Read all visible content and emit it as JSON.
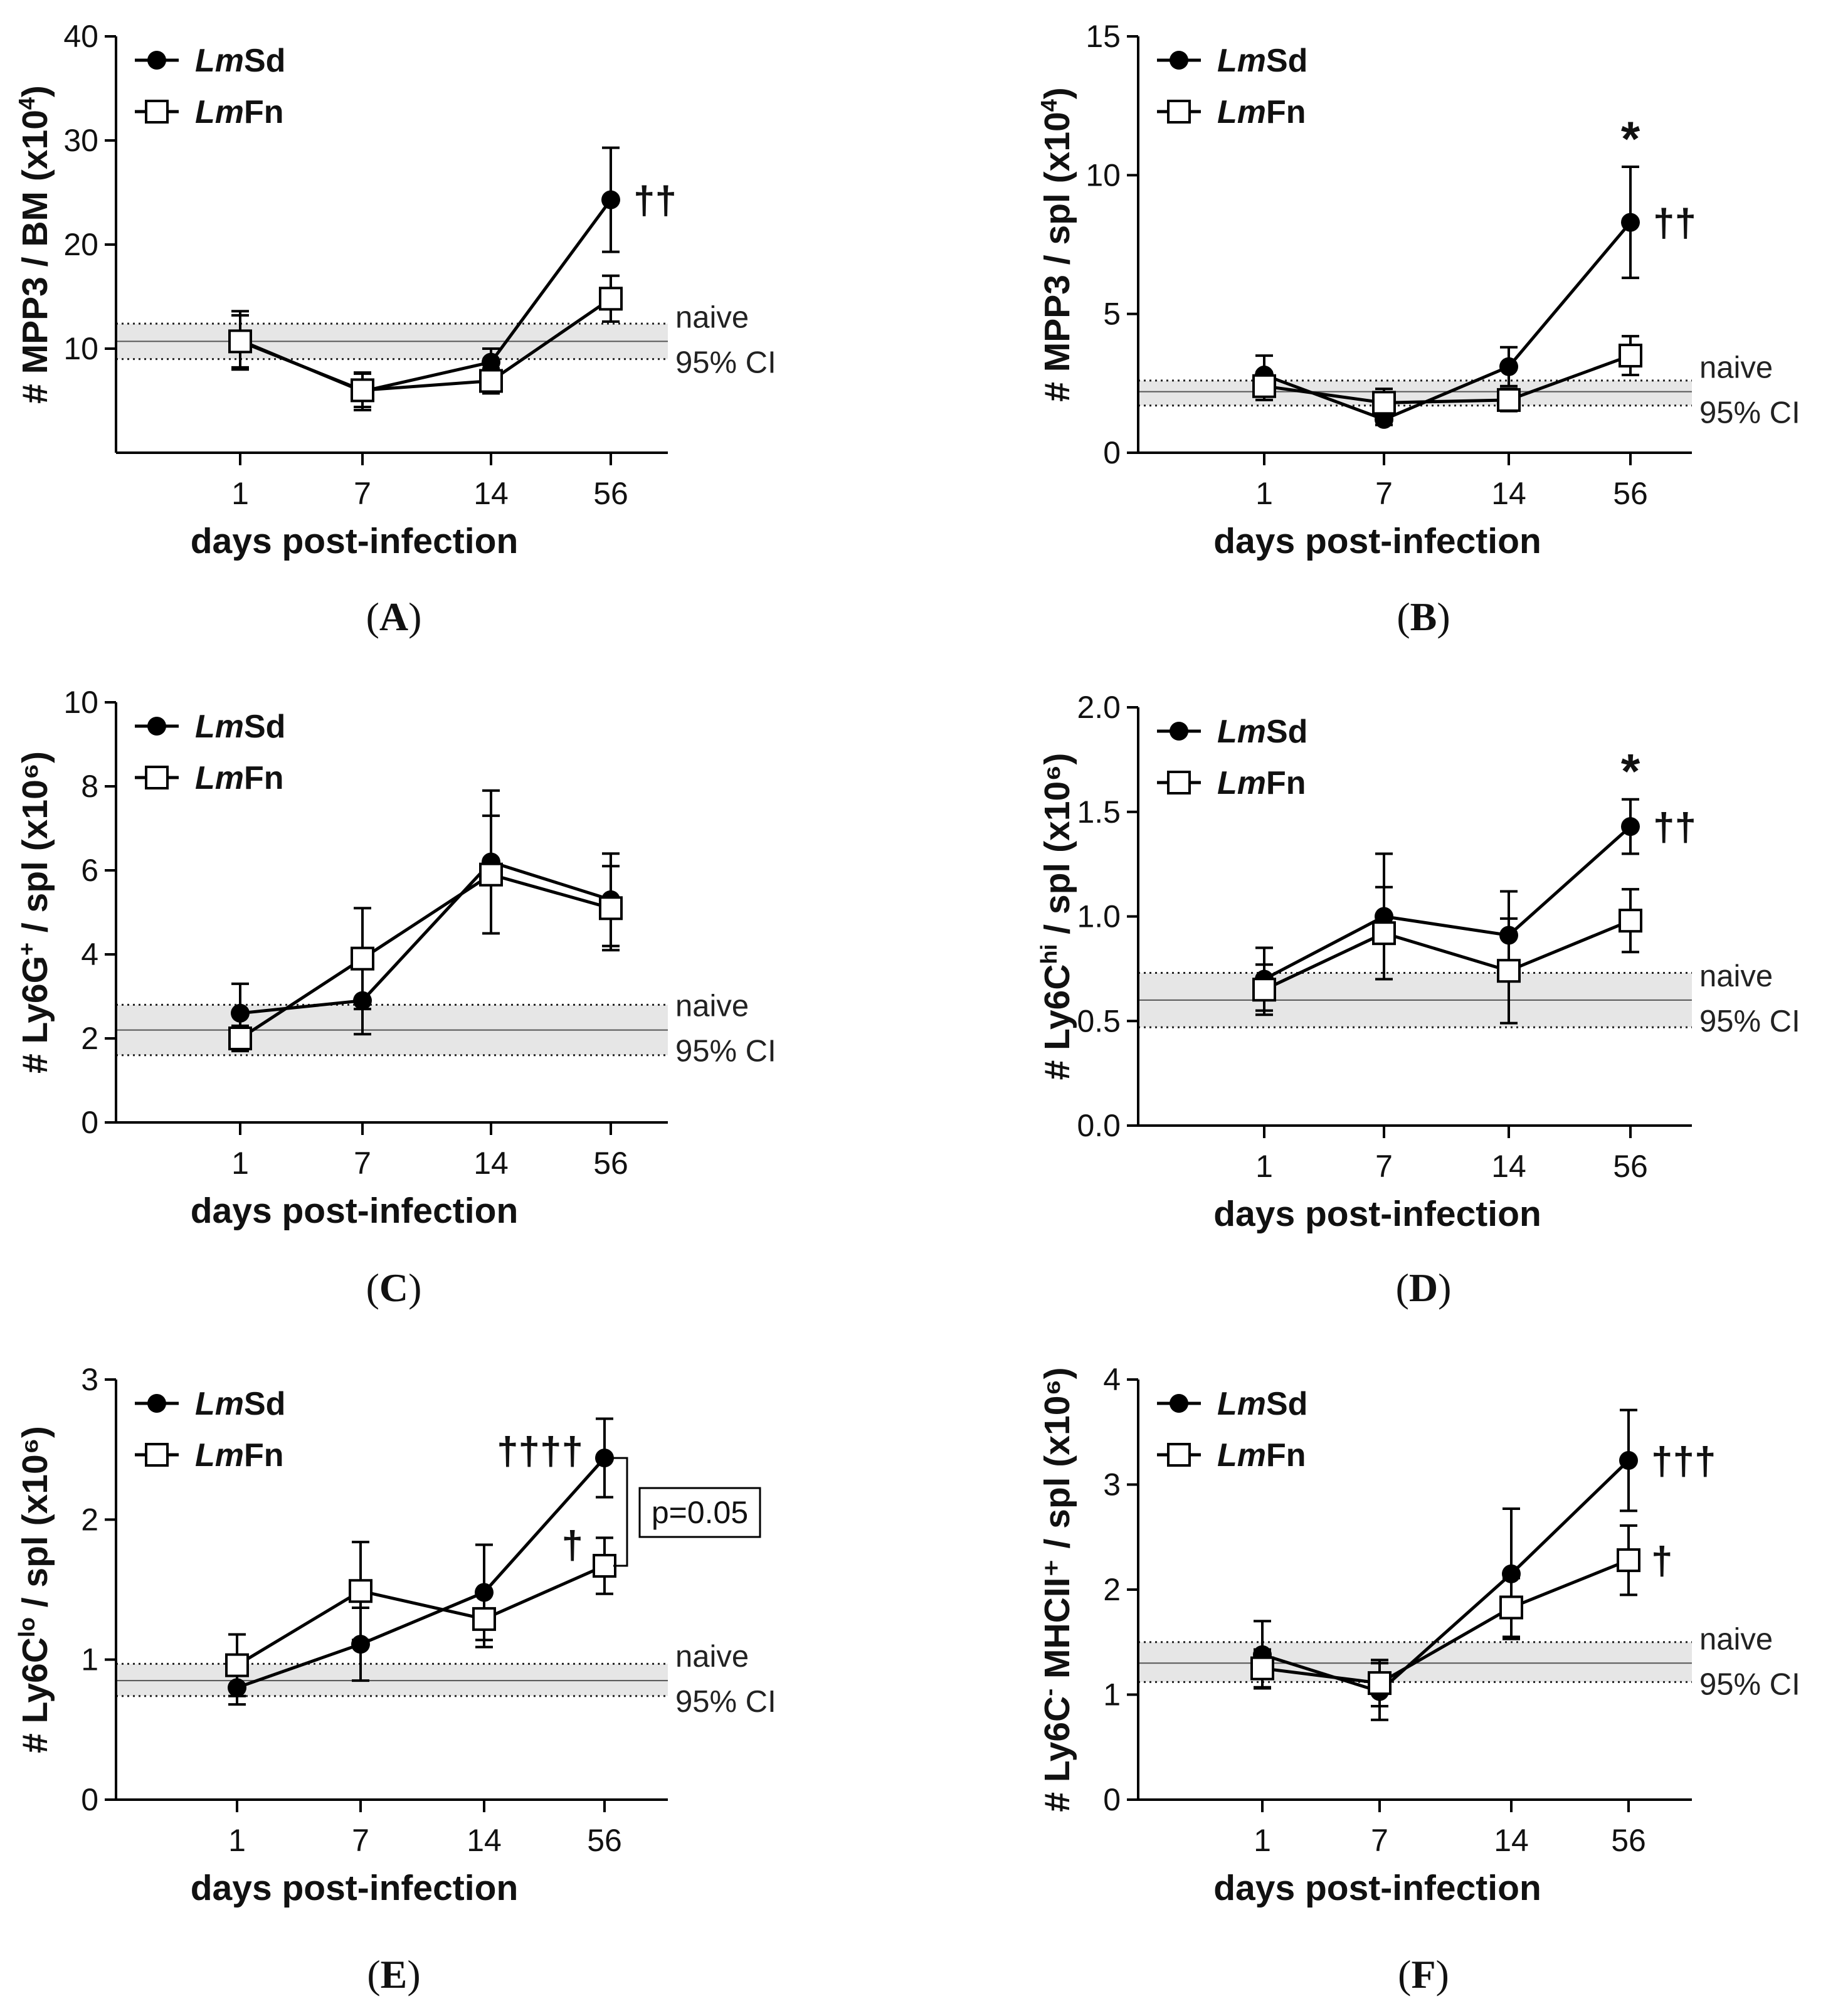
{
  "figure": {
    "x_axis_title": "days post-infection",
    "legend": [
      {
        "prefix": "Lm",
        "suffix": "Sd",
        "marker": "filled-circle",
        "color": "#000000"
      },
      {
        "prefix": "Lm",
        "suffix": "Fn",
        "marker": "open-square",
        "color": "#000000"
      }
    ],
    "naive_label": "naive",
    "ci_label": "95% CI",
    "colors": {
      "line": "#000000",
      "band": "#e6e6e6",
      "ci_line": "#555555"
    }
  },
  "chart_data": [
    {
      "id": "A",
      "panel_label": "A",
      "type": "line",
      "ylabel_main": "# MPP3 / BM (x10",
      "ylabel_sup": "4",
      "ylabel_sub": "",
      "ylabel_end": ")",
      "categories": [
        "1",
        "7",
        "14",
        "56"
      ],
      "ylim": [
        0,
        40
      ],
      "yticks": [
        10,
        20,
        30,
        40
      ],
      "series": [
        {
          "name": "LmSd",
          "values": [
            10.8,
            5.9,
            8.7,
            24.3
          ],
          "err": [
            2.8,
            1.8,
            1.3,
            5.0
          ]
        },
        {
          "name": "LmFn",
          "values": [
            10.7,
            6.0,
            6.9,
            14.8
          ],
          "err": [
            2.5,
            1.6,
            1.2,
            2.2
          ]
        }
      ],
      "naive": {
        "mean": 10.7,
        "ci": [
          9.0,
          12.4
        ]
      },
      "annotations": [
        {
          "series": "LmSd",
          "index": 3,
          "text": "††",
          "position": "right"
        }
      ]
    },
    {
      "id": "B",
      "panel_label": "B",
      "type": "line",
      "ylabel_main": "# MPP3 / spl (x10",
      "ylabel_sup": "4",
      "ylabel_sub": "",
      "ylabel_end": ")",
      "categories": [
        "1",
        "7",
        "14",
        "56"
      ],
      "ylim": [
        0,
        15
      ],
      "yticks": [
        0,
        5,
        10,
        15
      ],
      "series": [
        {
          "name": "LmSd",
          "values": [
            2.8,
            1.2,
            3.1,
            8.3
          ],
          "err": [
            0.7,
            0.2,
            0.7,
            2.0
          ]
        },
        {
          "name": "LmFn",
          "values": [
            2.4,
            1.8,
            1.9,
            3.5
          ],
          "err": [
            0.5,
            0.5,
            0.4,
            0.7
          ]
        }
      ],
      "naive": {
        "mean": 2.2,
        "ci": [
          1.7,
          2.6
        ]
      },
      "annotations": [
        {
          "series": "LmSd",
          "index": 3,
          "text": "*",
          "position": "above"
        },
        {
          "series": "LmSd",
          "index": 3,
          "text": "††",
          "position": "right"
        }
      ]
    },
    {
      "id": "C",
      "panel_label": "C",
      "type": "line",
      "ylabel_main": "# Ly6G",
      "ylabel_sup": "+",
      "ylabel_sub": "",
      "ylabel_end": " / spl (x10⁶)",
      "categories": [
        "1",
        "7",
        "14",
        "56"
      ],
      "ylim": [
        0,
        10
      ],
      "yticks": [
        0,
        2,
        4,
        6,
        8,
        10
      ],
      "series": [
        {
          "name": "LmSd",
          "values": [
            2.6,
            2.9,
            6.2,
            5.3
          ],
          "err": [
            0.7,
            0.8,
            1.7,
            1.1
          ]
        },
        {
          "name": "LmFn",
          "values": [
            2.0,
            3.9,
            5.9,
            5.1
          ],
          "err": [
            0.3,
            1.2,
            1.4,
            1.0
          ]
        }
      ],
      "naive": {
        "mean": 2.2,
        "ci": [
          1.6,
          2.8
        ]
      },
      "annotations": []
    },
    {
      "id": "D",
      "panel_label": "D",
      "type": "line",
      "ylabel_main": "# Ly6C",
      "ylabel_sup": "hi",
      "ylabel_sub": "",
      "ylabel_end": " / spl (x10⁶)",
      "categories": [
        "1",
        "7",
        "14",
        "56"
      ],
      "ylim": [
        0,
        2.0
      ],
      "yticks": [
        0,
        0.5,
        1.0,
        1.5,
        2.0
      ],
      "series": [
        {
          "name": "LmSd",
          "values": [
            0.7,
            1.0,
            0.91,
            1.43
          ],
          "err": [
            0.15,
            0.3,
            0.21,
            0.13
          ]
        },
        {
          "name": "LmFn",
          "values": [
            0.65,
            0.92,
            0.74,
            0.98
          ],
          "err": [
            0.12,
            0.22,
            0.25,
            0.15
          ]
        }
      ],
      "naive": {
        "mean": 0.6,
        "ci": [
          0.47,
          0.73
        ]
      },
      "annotations": [
        {
          "series": "LmSd",
          "index": 3,
          "text": "*",
          "position": "above"
        },
        {
          "series": "LmSd",
          "index": 3,
          "text": "††",
          "position": "right"
        }
      ]
    },
    {
      "id": "E",
      "panel_label": "E",
      "type": "line",
      "ylabel_main": "# Ly6C",
      "ylabel_sup": "lo",
      "ylabel_sub": "",
      "ylabel_end": " / spl (x10⁶)",
      "categories": [
        "1",
        "7",
        "14",
        "56"
      ],
      "ylim": [
        0,
        3
      ],
      "yticks": [
        0,
        1,
        2,
        3
      ],
      "series": [
        {
          "name": "LmSd",
          "values": [
            0.8,
            1.11,
            1.48,
            2.44
          ],
          "err": [
            0.12,
            0.26,
            0.34,
            0.28
          ]
        },
        {
          "name": "LmFn",
          "values": [
            0.96,
            1.49,
            1.29,
            1.67
          ],
          "err": [
            0.22,
            0.35,
            0.2,
            0.2
          ]
        }
      ],
      "naive": {
        "mean": 0.85,
        "ci": [
          0.74,
          0.97
        ]
      },
      "annotations": [
        {
          "series": "LmSd",
          "index": 3,
          "text": "††††",
          "position": "left"
        },
        {
          "series": "LmFn",
          "index": 3,
          "text": "†",
          "position": "left-above"
        }
      ],
      "pvalue": {
        "text": "p=0.05",
        "between": [
          2.44,
          1.67
        ]
      }
    },
    {
      "id": "F",
      "panel_label": "F",
      "type": "line",
      "ylabel_main": "# Ly6C",
      "ylabel_sup": "-",
      "ylabel_sub": "",
      "ylabel_end": " MHCII⁺ / spl (x10⁶)",
      "categories": [
        "1",
        "7",
        "14",
        "56"
      ],
      "ylim": [
        0,
        4
      ],
      "yticks": [
        0,
        1,
        2,
        3,
        4
      ],
      "series": [
        {
          "name": "LmSd",
          "values": [
            1.38,
            1.03,
            2.15,
            3.23
          ],
          "err": [
            0.32,
            0.27,
            0.62,
            0.48
          ]
        },
        {
          "name": "LmFn",
          "values": [
            1.25,
            1.11,
            1.83,
            2.28
          ],
          "err": [
            0.18,
            0.22,
            0.28,
            0.33
          ]
        }
      ],
      "naive": {
        "mean": 1.3,
        "ci": [
          1.12,
          1.5
        ]
      },
      "annotations": [
        {
          "series": "LmSd",
          "index": 3,
          "text": "†††",
          "position": "right"
        },
        {
          "series": "LmFn",
          "index": 3,
          "text": "†",
          "position": "right"
        }
      ]
    }
  ]
}
